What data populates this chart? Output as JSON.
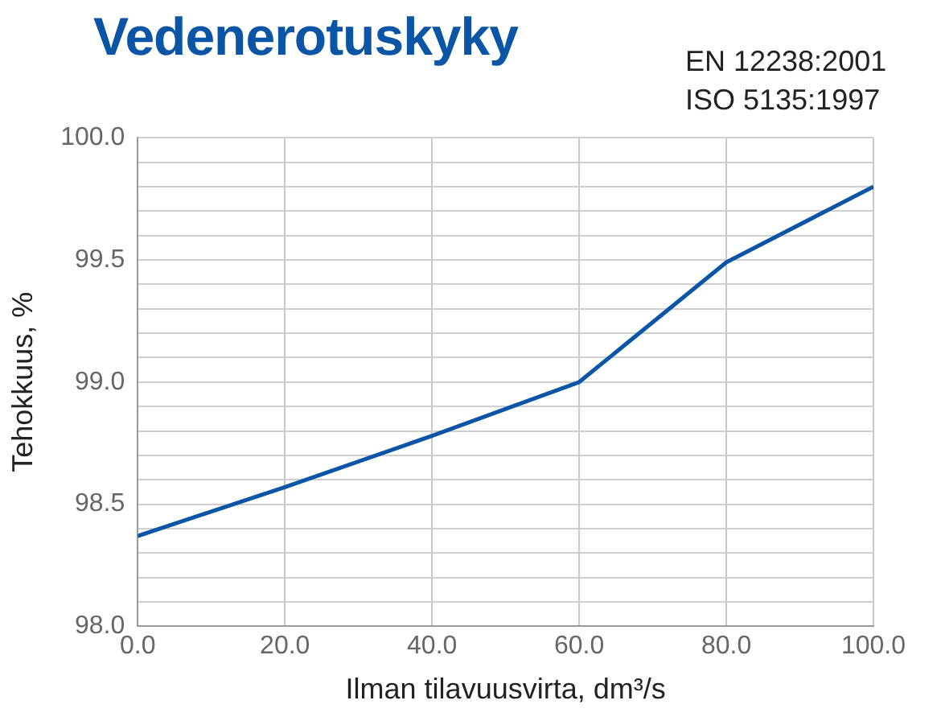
{
  "chart_data": {
    "type": "line",
    "title": "Vedenerotuskyky",
    "annotations": [
      "EN 12238:2001",
      "ISO 5135:1997"
    ],
    "xlabel": "Ilman tilavuusvirta, dm³/s",
    "ylabel": "Tehokkuus, %",
    "x": [
      0,
      20,
      40,
      60,
      80,
      100
    ],
    "series": [
      {
        "color": "#0a55a5",
        "values": [
          98.37,
          98.57,
          98.78,
          99.0,
          99.49,
          99.8
        ]
      }
    ],
    "xlim": [
      0,
      100
    ],
    "xticks": [
      {
        "value": 0,
        "label": "0.0"
      },
      {
        "value": 20,
        "label": "20.0"
      },
      {
        "value": 40,
        "label": "40.0"
      },
      {
        "value": 60,
        "label": "60.0"
      },
      {
        "value": 80,
        "label": "80.0"
      },
      {
        "value": 100,
        "label": "100.0"
      }
    ],
    "ylim": [
      98,
      100
    ],
    "yticks": [
      {
        "value": 98,
        "label": "98.0"
      },
      {
        "value": 98.1,
        "label": null
      },
      {
        "value": 98.2,
        "label": null
      },
      {
        "value": 98.3,
        "label": null
      },
      {
        "value": 98.4,
        "label": null
      },
      {
        "value": 98.5,
        "label": "98.5"
      },
      {
        "value": 98.6,
        "label": null
      },
      {
        "value": 98.7,
        "label": null
      },
      {
        "value": 98.8,
        "label": null
      },
      {
        "value": 98.9,
        "label": null
      },
      {
        "value": 99,
        "label": "99.0"
      },
      {
        "value": 99.1,
        "label": null
      },
      {
        "value": 99.2,
        "label": null
      },
      {
        "value": 99.3,
        "label": null
      },
      {
        "value": 99.4,
        "label": null
      },
      {
        "value": 99.5,
        "label": "99.5"
      },
      {
        "value": 99.6,
        "label": null
      },
      {
        "value": 99.7,
        "label": null
      },
      {
        "value": 99.8,
        "label": null
      },
      {
        "value": 99.9,
        "label": null
      },
      {
        "value": 100,
        "label": "100.0"
      }
    ],
    "grid": true,
    "legend": false,
    "marker": "none",
    "line_style": "solid"
  }
}
